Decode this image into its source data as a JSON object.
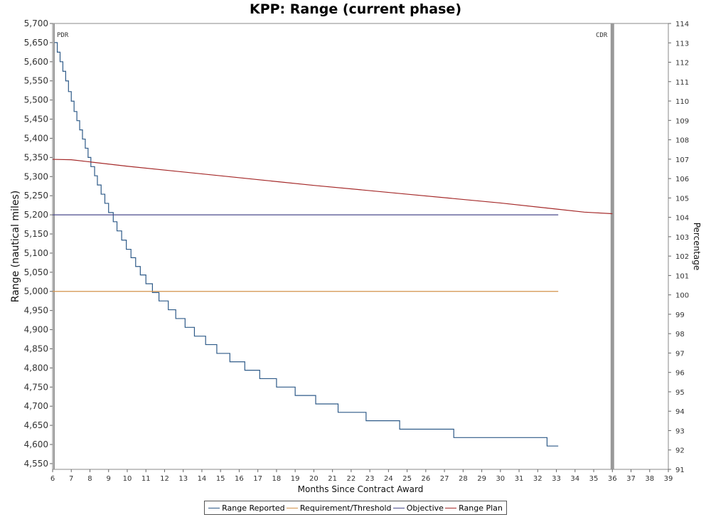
{
  "chart_data": {
    "type": "line",
    "title": "KPP: Range (current phase)",
    "xlabel": "Months Since Contract Award",
    "ylabel": "Range (nautical miles)",
    "y2label": "Percentage",
    "xlim": [
      6,
      39
    ],
    "ylim": [
      4535,
      5700
    ],
    "y2lim": [
      91,
      114
    ],
    "xticks": [
      6,
      7,
      8,
      9,
      10,
      11,
      12,
      13,
      14,
      15,
      16,
      17,
      18,
      19,
      20,
      21,
      22,
      23,
      24,
      25,
      26,
      27,
      28,
      29,
      30,
      31,
      32,
      33,
      34,
      35,
      36,
      37,
      38,
      39
    ],
    "yticks": [
      5700,
      5650,
      5600,
      5550,
      5500,
      5450,
      5400,
      5350,
      5300,
      5250,
      5200,
      5150,
      5100,
      5050,
      5000,
      4950,
      4900,
      4850,
      4800,
      4750,
      4700,
      4650,
      4600,
      4550
    ],
    "ytick_labels": [
      "5,700",
      "5,650",
      "5,600",
      "5,550",
      "5,500",
      "5,450",
      "5,400",
      "5,350",
      "5,300",
      "5,250",
      "5,200",
      "5,150",
      "5,100",
      "5,050",
      "5,000",
      "4,950",
      "4,900",
      "4,850",
      "4,800",
      "4,750",
      "4,700",
      "4,650",
      "4,600",
      "4,550"
    ],
    "y2ticks": [
      114,
      113,
      112,
      111,
      110,
      109,
      108,
      107,
      106,
      105,
      104,
      103,
      102,
      101,
      100,
      99,
      98,
      97,
      96,
      95,
      94,
      93,
      92,
      91
    ],
    "grid": false,
    "legend_position": "bottom",
    "milestones": [
      {
        "label": "PDR",
        "x": 6
      },
      {
        "label": "CDR",
        "x": 36
      }
    ],
    "series": [
      {
        "name": "Range Reported",
        "color": "#2e5a88",
        "step": true,
        "x": [
          6.1,
          6.25,
          6.4,
          6.55,
          6.7,
          6.85,
          7.0,
          7.15,
          7.3,
          7.45,
          7.6,
          7.75,
          7.9,
          8.05,
          8.25,
          8.4,
          8.6,
          8.8,
          9.0,
          9.25,
          9.45,
          9.7,
          9.95,
          10.2,
          10.45,
          10.7,
          11.0,
          11.35,
          11.7,
          12.2,
          12.6,
          13.1,
          13.6,
          14.2,
          14.8,
          15.5,
          16.3,
          17.1,
          18.0,
          19.0,
          20.1,
          21.3,
          22.8,
          24.6,
          27.5,
          32.5,
          33.1
        ],
        "values": [
          5650,
          5625,
          5600,
          5575,
          5550,
          5522,
          5497,
          5470,
          5446,
          5422,
          5398,
          5374,
          5350,
          5326,
          5302,
          5278,
          5254,
          5230,
          5206,
          5182,
          5158,
          5134,
          5110,
          5088,
          5065,
          5043,
          5020,
          4997,
          4975,
          4952,
          4929,
          4906,
          4883,
          4861,
          4838,
          4816,
          4794,
          4772,
          4750,
          4728,
          4706,
          4684,
          4662,
          4640,
          4618,
          4596,
          4596
        ]
      },
      {
        "name": "Requirement/Threshold",
        "color": "#d2924a",
        "step": false,
        "x": [
          6,
          33.1
        ],
        "values": [
          5000,
          5000
        ]
      },
      {
        "name": "Objective",
        "color": "#4a4a8c",
        "step": false,
        "x": [
          6,
          33.1
        ],
        "values": [
          5200,
          5200
        ]
      },
      {
        "name": "Range Plan",
        "color": "#a52a2a",
        "step": false,
        "x": [
          6,
          7,
          10,
          15,
          20,
          25,
          30,
          33,
          34.5,
          36
        ],
        "values": [
          5345,
          5344,
          5327,
          5302,
          5277,
          5254,
          5231,
          5215,
          5207,
          5203
        ]
      }
    ]
  },
  "legend": {
    "items": [
      {
        "label": "Range Reported",
        "color": "#2e5a88"
      },
      {
        "label": "Requirement/Threshold",
        "color": "#d2924a"
      },
      {
        "label": "Objective",
        "color": "#4a4a8c"
      },
      {
        "label": "Range Plan",
        "color": "#a52a2a"
      }
    ]
  }
}
